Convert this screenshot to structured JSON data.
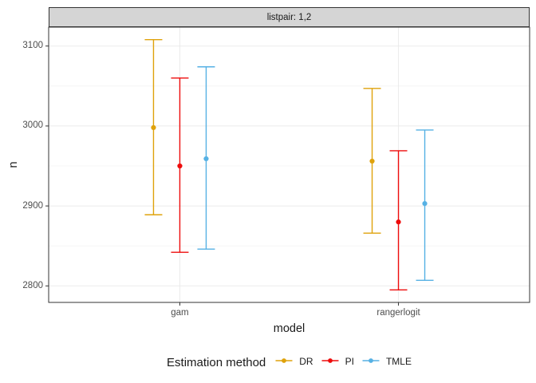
{
  "chart_data": {
    "type": "errorbar",
    "facet_label": "listpair: 1,2",
    "xlabel": "model",
    "ylabel": "n",
    "legend_title": "Estimation method",
    "categories": [
      "gam",
      "rangerlogit"
    ],
    "yticks": [
      2800,
      2900,
      3000,
      3100
    ],
    "minor_yticks": [
      2850,
      2950,
      3050
    ],
    "ylim": [
      2779,
      3124
    ],
    "expand": 0.05,
    "grid": true,
    "legend_position": "bottom",
    "series": [
      {
        "name": "DR",
        "color": "#DFA20B",
        "values": [
          {
            "category": "gam",
            "mid": 2998,
            "lo": 2889,
            "hi": 3108
          },
          {
            "category": "rangerlogit",
            "mid": 2956,
            "lo": 2866,
            "hi": 3047
          }
        ]
      },
      {
        "name": "PI",
        "color": "#EE0C0C",
        "values": [
          {
            "category": "gam",
            "mid": 2950,
            "lo": 2842,
            "hi": 3060
          },
          {
            "category": "rangerlogit",
            "mid": 2880,
            "lo": 2795,
            "hi": 2969
          }
        ]
      },
      {
        "name": "TMLE",
        "color": "#56B1E4",
        "values": [
          {
            "category": "gam",
            "mid": 2959,
            "lo": 2846,
            "hi": 3074
          },
          {
            "category": "rangerlogit",
            "mid": 2903,
            "lo": 2807,
            "hi": 2995
          }
        ]
      }
    ]
  },
  "colors": {
    "background": "#FFFFFF",
    "strip_bg": "#D5D5D5",
    "strip_border": "#333333",
    "panel_border": "#333333",
    "grid_major": "#EBEBEB",
    "grid_minor": "#F4F4F4",
    "tick_mark": "#333333",
    "tick_text": "#4D4D4D",
    "text": "#1A1A1A"
  }
}
